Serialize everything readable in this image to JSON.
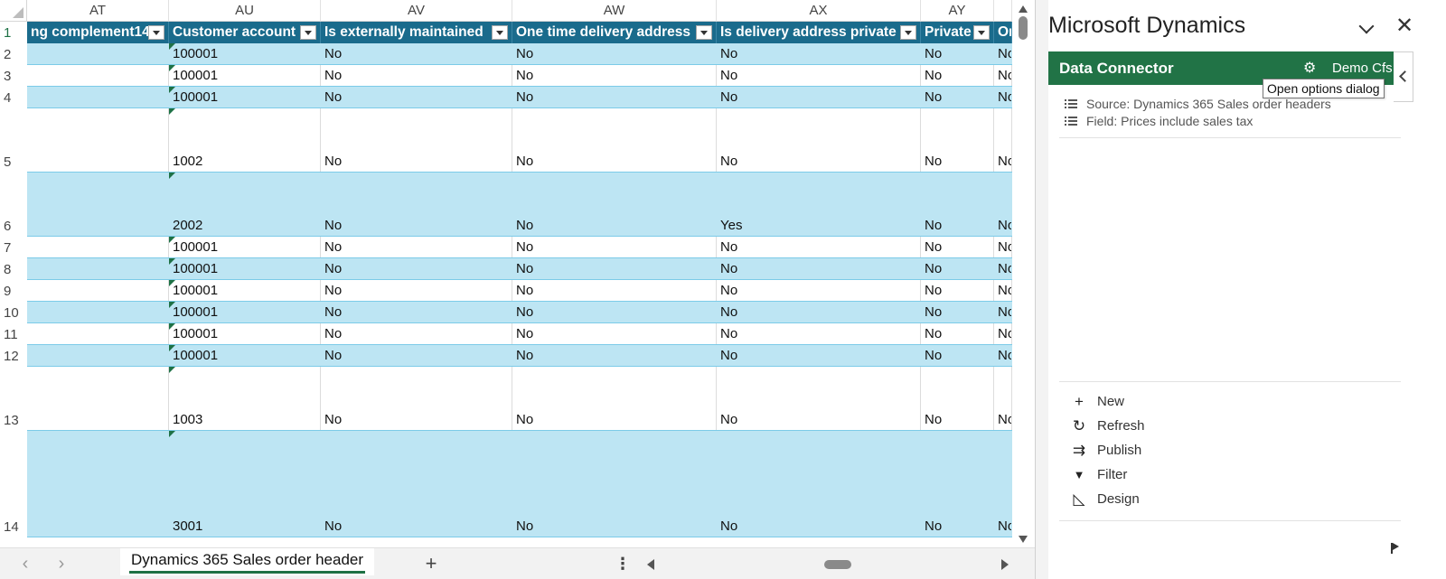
{
  "spreadsheet": {
    "column_letters": [
      "AT",
      "AU",
      "AV",
      "AW",
      "AX",
      "AY",
      ""
    ],
    "header_row_number": "1",
    "table_headers": [
      "ng complement14",
      "Customer account",
      "Is externally maintained",
      "One time delivery address",
      "Is delivery address private",
      "Private",
      "On"
    ],
    "rows": [
      {
        "num": "2",
        "cells": [
          "",
          "100001",
          "No",
          "No",
          "No",
          "No",
          "No"
        ]
      },
      {
        "num": "3",
        "cells": [
          "",
          "100001",
          "No",
          "No",
          "No",
          "No",
          "No"
        ]
      },
      {
        "num": "4",
        "cells": [
          "",
          "100001",
          "No",
          "No",
          "No",
          "No",
          "No"
        ]
      },
      {
        "num": "5",
        "cells": [
          "",
          "1002",
          "No",
          "No",
          "No",
          "No",
          "No"
        ]
      },
      {
        "num": "6",
        "cells": [
          "",
          "2002",
          "No",
          "No",
          "Yes",
          "No",
          "No"
        ]
      },
      {
        "num": "7",
        "cells": [
          "",
          "100001",
          "No",
          "No",
          "No",
          "No",
          "No"
        ]
      },
      {
        "num": "8",
        "cells": [
          "",
          "100001",
          "No",
          "No",
          "No",
          "No",
          "No"
        ]
      },
      {
        "num": "9",
        "cells": [
          "",
          "100001",
          "No",
          "No",
          "No",
          "No",
          "No"
        ]
      },
      {
        "num": "10",
        "cells": [
          "",
          "100001",
          "No",
          "No",
          "No",
          "No",
          "No"
        ]
      },
      {
        "num": "11",
        "cells": [
          "",
          "100001",
          "No",
          "No",
          "No",
          "No",
          "No"
        ]
      },
      {
        "num": "12",
        "cells": [
          "",
          "100001",
          "No",
          "No",
          "No",
          "No",
          "No"
        ]
      },
      {
        "num": "13",
        "cells": [
          "",
          "1003",
          "No",
          "No",
          "No",
          "No",
          "No"
        ]
      },
      {
        "num": "14",
        "cells": [
          "",
          "3001",
          "No",
          "No",
          "No",
          "No",
          "No"
        ]
      }
    ],
    "sheet_tab": "Dynamics 365 Sales order header",
    "add_sheet_label": "+",
    "tab_more_label": "⋮",
    "nav_prev": "‹",
    "nav_next": "›"
  },
  "pane": {
    "title": "Microsoft Dynamics",
    "close_glyph": "✕",
    "connector_title": "Data Connector",
    "gear_glyph": "⚙",
    "user_name": "Demo Cfs",
    "tooltip": "Open options dialog",
    "info": [
      "Source: Dynamics 365 Sales order headers",
      "Field: Prices include sales tax"
    ],
    "actions": [
      {
        "label": "New",
        "icon": "plus-icon",
        "glyph": "+"
      },
      {
        "label": "Refresh",
        "icon": "refresh-icon",
        "glyph": "↻"
      },
      {
        "label": "Publish",
        "icon": "publish-icon",
        "glyph": "⇉"
      },
      {
        "label": "Filter",
        "icon": "filter-icon",
        "glyph": "▼"
      },
      {
        "label": "Design",
        "icon": "design-icon",
        "glyph": "◺"
      }
    ]
  },
  "colors": {
    "table_header": "#1a6b8c",
    "band_row": "#bde5f3",
    "connector_header": "#217346"
  }
}
